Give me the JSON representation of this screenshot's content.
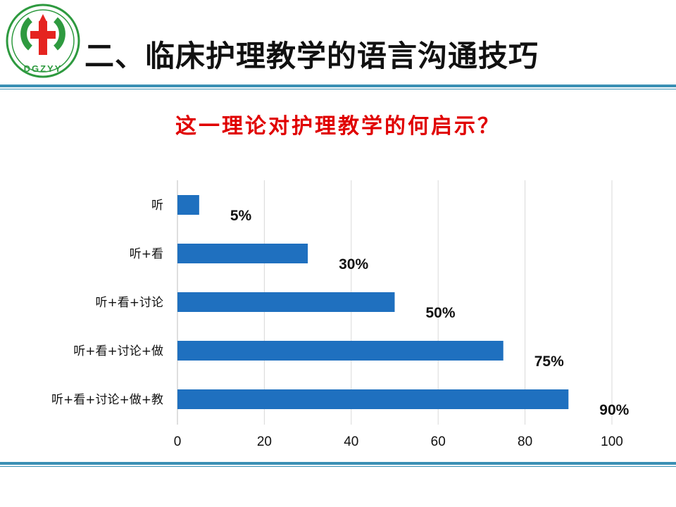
{
  "header": {
    "title": "二、临床护理教学的语言沟通技巧",
    "logo": {
      "text": "DGZYY",
      "color": "#2e9a3f",
      "accent": "#e52420"
    }
  },
  "subtitle": "这一理论对护理教学的何启示？",
  "colors": {
    "bar": "#1f70bf",
    "rule": "#3b90b4",
    "subtitle": "#e00000",
    "grid": "#d9d9d9"
  },
  "chart_data": {
    "type": "bar",
    "orientation": "horizontal",
    "categories": [
      "听",
      "听+看",
      "听+看+讨论",
      "听+看+讨论+做",
      "听+看+讨论+做+教"
    ],
    "values": [
      5,
      30,
      50,
      75,
      90
    ],
    "data_labels": [
      "5%",
      "30%",
      "50%",
      "75%",
      "90%"
    ],
    "xlim": [
      0,
      100
    ],
    "xticks": [
      0,
      20,
      40,
      60,
      80,
      100
    ],
    "grid": true,
    "legend": false,
    "title": "",
    "xlabel": "",
    "ylabel": ""
  }
}
